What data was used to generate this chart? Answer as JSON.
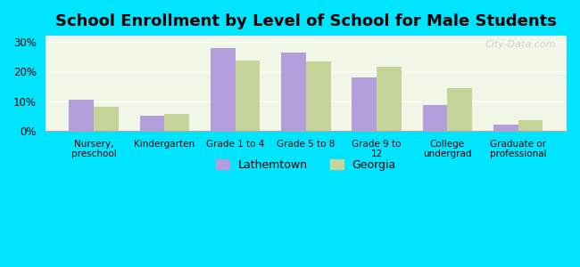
{
  "title": "School Enrollment by Level of School for Male Students",
  "categories": [
    "Nursery,\npreschool",
    "Kindergarten",
    "Grade 1 to 4",
    "Grade 5 to 8",
    "Grade 9 to\n12",
    "College\nundergrad",
    "Graduate or\nprofessional"
  ],
  "lathemtown": [
    10.5,
    5.2,
    27.8,
    26.5,
    18.0,
    8.7,
    2.0
  ],
  "georgia": [
    8.0,
    5.7,
    23.8,
    23.3,
    21.7,
    14.3,
    3.5
  ],
  "lathemtown_color": "#b39ddb",
  "georgia_color": "#c5d59a",
  "background_color": "#00e5ff",
  "plot_bg_start": "#f0f7e6",
  "plot_bg_end": "#ffffff",
  "bar_width": 0.35,
  "ylim": [
    0,
    32
  ],
  "yticks": [
    0,
    10,
    20,
    30
  ],
  "watermark": "City-Data.com",
  "legend_lathemtown": "Lathemtown",
  "legend_georgia": "Georgia"
}
